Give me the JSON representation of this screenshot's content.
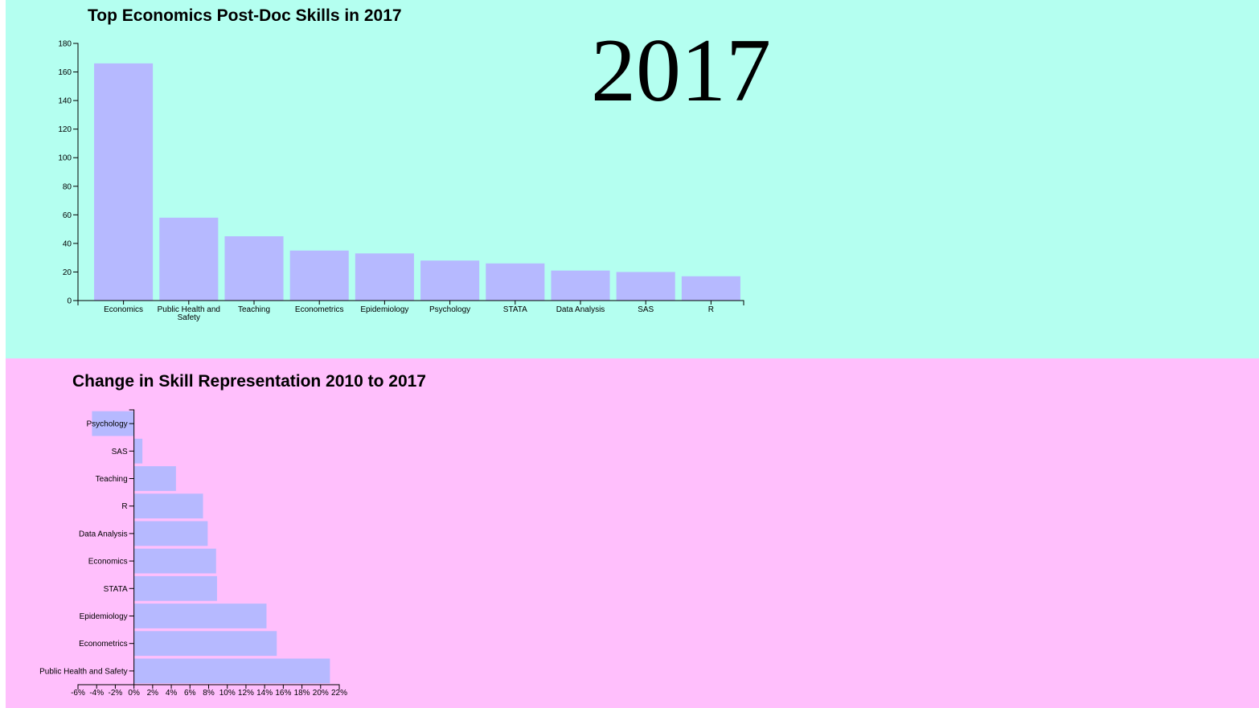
{
  "top_panel": {
    "title": "Top Economics Post-Doc Skills in 2017",
    "year": "2017"
  },
  "bottom_panel": {
    "title": "Change in Skill Representation 2010 to 2017"
  },
  "colors": {
    "top_background": "#b4fff0",
    "bottom_background": "#ffbffc",
    "bar": "#b6b9ff"
  },
  "chart_data": [
    {
      "type": "bar",
      "title": "Top Economics Post-Doc Skills in 2017",
      "categories": [
        "Economics",
        "Public Health and Safety",
        "Teaching",
        "Econometrics",
        "Epidemiology",
        "Psychology",
        "STATA",
        "Data Analysis",
        "SAS",
        "R"
      ],
      "values": [
        166,
        58,
        45,
        35,
        33,
        28,
        26,
        21,
        20,
        17
      ],
      "ylim": [
        0,
        180
      ],
      "yticks": [
        "0",
        "20",
        "40",
        "60",
        "80",
        "100",
        "120",
        "140",
        "160",
        "180"
      ],
      "xlabel": "",
      "ylabel": "",
      "grid": false
    },
    {
      "type": "bar",
      "orientation": "horizontal",
      "title": "Change in Skill Representation 2010 to 2017",
      "categories": [
        "Psychology",
        "SAS",
        "Teaching",
        "R",
        "Data Analysis",
        "Economics",
        "STATA",
        "Epidemiology",
        "Econometrics",
        "Public Health and Safety"
      ],
      "values": [
        -4.5,
        0.9,
        4.5,
        7.4,
        7.9,
        8.8,
        8.9,
        14.2,
        15.3,
        21.0
      ],
      "unit": "%",
      "xlim": [
        -6,
        22
      ],
      "xticks": [
        "-6%",
        "-4%",
        "-2%",
        "0%",
        "2%",
        "4%",
        "6%",
        "8%",
        "10%",
        "12%",
        "14%",
        "16%",
        "18%",
        "20%",
        "22%"
      ],
      "xlabel": "",
      "ylabel": "",
      "grid": false
    }
  ]
}
